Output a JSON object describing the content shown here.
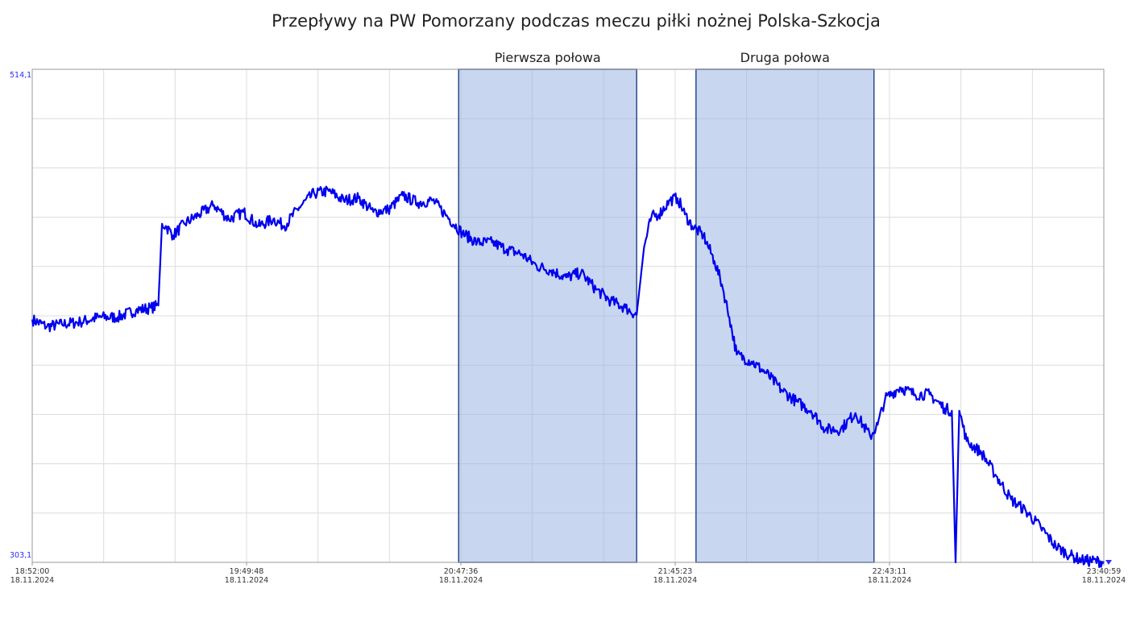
{
  "chart_data": {
    "type": "line",
    "title": "Przepływy na PW Pomorzany podczas meczu piłki nożnej Polska-Szkocja",
    "y_range": {
      "min_label": "303,1",
      "max_label": "514,1",
      "min": 303.1,
      "max": 514.1
    },
    "x_ticks": [
      {
        "time": "18:52:00",
        "date": "18.11.2024"
      },
      {
        "time": "19:49:48",
        "date": "18.11.2024"
      },
      {
        "time": "20:47:36",
        "date": "18.11.2024"
      },
      {
        "time": "21:45:23",
        "date": "18.11.2024"
      },
      {
        "time": "22:43:11",
        "date": "18.11.2024"
      },
      {
        "time": "23:40:59",
        "date": "18.11.2024"
      }
    ],
    "highlight_bands": [
      {
        "label": "Pierwsza połowa",
        "start": "20:47",
        "end": "21:35"
      },
      {
        "label": "Druga połowa",
        "start": "21:51",
        "end": "22:39"
      }
    ],
    "grid": true,
    "series": [
      {
        "color": "#0000ee",
        "points": [
          [
            "18:52",
            407
          ],
          [
            "18:56",
            404
          ],
          [
            "19:00",
            405
          ],
          [
            "19:05",
            406
          ],
          [
            "19:10",
            408
          ],
          [
            "19:15",
            408
          ],
          [
            "19:20",
            411
          ],
          [
            "19:24",
            412
          ],
          [
            "19:26",
            413
          ],
          [
            "19:27",
            448
          ],
          [
            "19:28",
            447
          ],
          [
            "19:30",
            443
          ],
          [
            "19:33",
            448
          ],
          [
            "19:37",
            452
          ],
          [
            "19:41",
            456
          ],
          [
            "19:45",
            450
          ],
          [
            "19:49",
            453
          ],
          [
            "19:53",
            447
          ],
          [
            "19:57",
            450
          ],
          [
            "20:00",
            447
          ],
          [
            "20:04",
            455
          ],
          [
            "20:08",
            461
          ],
          [
            "20:12",
            462
          ],
          [
            "20:16",
            458
          ],
          [
            "20:20",
            459
          ],
          [
            "20:24",
            453
          ],
          [
            "20:28",
            454
          ],
          [
            "20:32",
            460
          ],
          [
            "20:36",
            457
          ],
          [
            "20:40",
            458
          ],
          [
            "20:44",
            451
          ],
          [
            "20:48",
            444
          ],
          [
            "20:52",
            440
          ],
          [
            "20:56",
            440
          ],
          [
            "21:00",
            437
          ],
          [
            "21:04",
            435
          ],
          [
            "21:08",
            430
          ],
          [
            "21:12",
            428
          ],
          [
            "21:16",
            425
          ],
          [
            "21:20",
            427
          ],
          [
            "21:24",
            420
          ],
          [
            "21:28",
            415
          ],
          [
            "21:32",
            412
          ],
          [
            "21:35",
            409
          ],
          [
            "21:37",
            438
          ],
          [
            "21:39",
            451
          ],
          [
            "21:41",
            452
          ],
          [
            "21:44",
            458
          ],
          [
            "21:46",
            459
          ],
          [
            "21:48",
            452
          ],
          [
            "21:50",
            447
          ],
          [
            "21:53",
            443
          ],
          [
            "21:56",
            432
          ],
          [
            "21:58",
            422
          ],
          [
            "22:00",
            408
          ],
          [
            "22:02",
            392
          ],
          [
            "22:06",
            389
          ],
          [
            "22:10",
            384
          ],
          [
            "22:14",
            377
          ],
          [
            "22:18",
            372
          ],
          [
            "22:22",
            368
          ],
          [
            "22:26",
            360
          ],
          [
            "22:30",
            360
          ],
          [
            "22:34",
            367
          ],
          [
            "22:38",
            357
          ],
          [
            "22:40",
            362
          ],
          [
            "22:42",
            373
          ],
          [
            "22:46",
            378
          ],
          [
            "22:50",
            375
          ],
          [
            "22:54",
            375
          ],
          [
            "22:58",
            369
          ],
          [
            "23:00",
            368
          ],
          [
            "23:01",
            303.1
          ],
          [
            "23:02",
            368
          ],
          [
            "23:04",
            355
          ],
          [
            "23:08",
            350
          ],
          [
            "23:12",
            340
          ],
          [
            "23:16",
            330
          ],
          [
            "23:20",
            325
          ],
          [
            "23:24",
            318
          ],
          [
            "23:28",
            310
          ],
          [
            "23:32",
            306
          ],
          [
            "23:35",
            304
          ],
          [
            "23:41",
            303.4
          ]
        ]
      }
    ]
  }
}
